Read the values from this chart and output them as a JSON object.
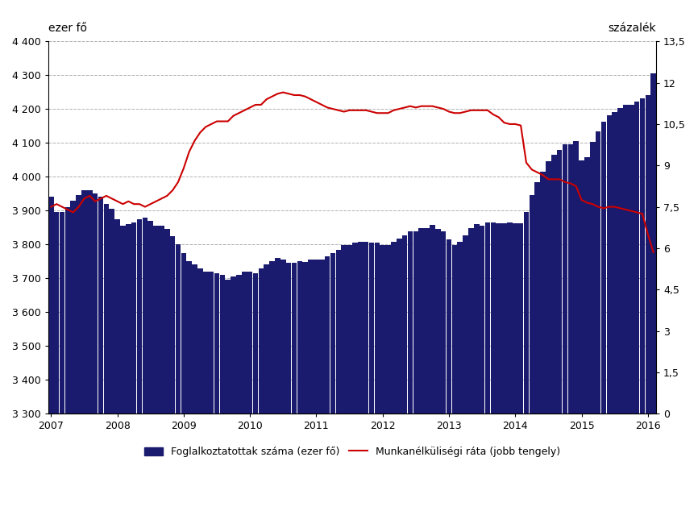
{
  "bar_color": "#1a1a6e",
  "line_color": "#cc0000",
  "background_color": "#ffffff",
  "ylabel_left": "ezer fő",
  "ylabel_right": "százalék",
  "ylim_left": [
    3300,
    4400
  ],
  "ylim_right": [
    0,
    13.5
  ],
  "yticks_left": [
    3300,
    3400,
    3500,
    3600,
    3700,
    3800,
    3900,
    4000,
    4100,
    4200,
    4300,
    4400
  ],
  "yticks_right": [
    0,
    1.5,
    3,
    4.5,
    6,
    7.5,
    9,
    10.5,
    12,
    13.5
  ],
  "legend_bar_label": "Foglalkoztatottak száma (ezer fő)",
  "legend_line_label": "Munkanélküliségi ráta (jobb tengely)",
  "grid_color": "#b0b0b0",
  "grid_style": "--",
  "bar_data": {
    "values": [
      3940,
      3895,
      3895,
      3910,
      3930,
      3945,
      3960,
      3960,
      3950,
      3940,
      3920,
      3905,
      3875,
      3855,
      3860,
      3865,
      3875,
      3880,
      3870,
      3855,
      3855,
      3845,
      3825,
      3800,
      3775,
      3750,
      3740,
      3730,
      3720,
      3720,
      3715,
      3710,
      3695,
      3705,
      3710,
      3720,
      3720,
      3715,
      3730,
      3740,
      3750,
      3760,
      3755,
      3745,
      3745,
      3750,
      3748,
      3755,
      3755,
      3755,
      3765,
      3775,
      3785,
      3798,
      3798,
      3805,
      3808,
      3808,
      3805,
      3805,
      3798,
      3798,
      3808,
      3818,
      3828,
      3838,
      3838,
      3848,
      3848,
      3858,
      3845,
      3838,
      3815,
      3798,
      3808,
      3828,
      3848,
      3860,
      3855,
      3865,
      3865,
      3862,
      3862,
      3865,
      3862,
      3862,
      3895,
      3945,
      3985,
      4015,
      4045,
      4065,
      4080,
      4095,
      4095,
      4105,
      4048,
      4058,
      4102,
      4135,
      4162,
      4182,
      4192,
      4202,
      4212,
      4212,
      4222,
      4232,
      4242,
      4305
    ]
  },
  "line_data": {
    "values": [
      7.5,
      7.6,
      7.5,
      7.4,
      7.3,
      7.5,
      7.8,
      7.9,
      7.7,
      7.8,
      7.9,
      7.8,
      7.7,
      7.6,
      7.7,
      7.6,
      7.6,
      7.5,
      7.6,
      7.7,
      7.8,
      7.9,
      8.1,
      8.4,
      8.9,
      9.5,
      9.9,
      10.2,
      10.4,
      10.5,
      10.6,
      10.6,
      10.6,
      10.8,
      10.9,
      11.0,
      11.1,
      11.2,
      11.2,
      11.4,
      11.5,
      11.6,
      11.65,
      11.6,
      11.55,
      11.55,
      11.5,
      11.4,
      11.3,
      11.2,
      11.1,
      11.05,
      11.0,
      10.95,
      11.0,
      11.0,
      11.0,
      11.0,
      10.95,
      10.9,
      10.9,
      10.9,
      11.0,
      11.05,
      11.1,
      11.15,
      11.1,
      11.15,
      11.15,
      11.15,
      11.1,
      11.05,
      10.95,
      10.9,
      10.9,
      10.95,
      11.0,
      11.0,
      11.0,
      11.0,
      10.85,
      10.75,
      10.55,
      10.5,
      10.5,
      10.45,
      9.1,
      8.85,
      8.75,
      8.65,
      8.5,
      8.5,
      8.5,
      8.4,
      8.35,
      8.25,
      7.75,
      7.65,
      7.6,
      7.5,
      7.45,
      7.5,
      7.5,
      7.45,
      7.4,
      7.35,
      7.3,
      7.25,
      6.5,
      5.85
    ]
  },
  "xtick_positions": [
    0,
    12,
    24,
    36,
    48,
    60,
    72,
    84,
    96,
    108
  ],
  "xtick_labels": [
    "2007",
    "2008",
    "2009",
    "2010",
    "2011",
    "2012",
    "2013",
    "2014",
    "2015",
    "2016"
  ]
}
